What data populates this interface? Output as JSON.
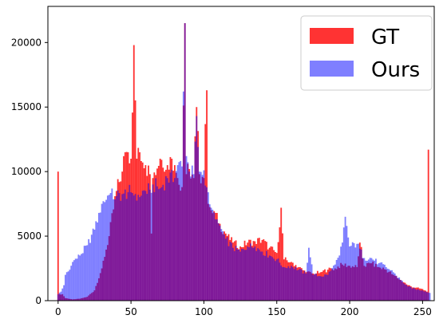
{
  "chart_data": {
    "type": "bar",
    "title": "",
    "xlabel": "",
    "ylabel": "",
    "xlim": [
      -7,
      258
    ],
    "ylim": [
      0,
      22800
    ],
    "x_ticks": [
      0,
      50,
      100,
      150,
      200,
      250
    ],
    "y_ticks": [
      0,
      5000,
      10000,
      15000,
      20000
    ],
    "legend_position": "top-right",
    "grid": false,
    "bin_width": 1,
    "series": [
      {
        "name": "GT",
        "color": "#ff0000",
        "opacity": 0.8,
        "control_points": [
          [
            0,
            10000
          ],
          [
            1,
            500
          ],
          [
            3,
            500
          ],
          [
            5,
            200
          ],
          [
            10,
            100
          ],
          [
            15,
            150
          ],
          [
            20,
            300
          ],
          [
            25,
            800
          ],
          [
            30,
            2500
          ],
          [
            35,
            5000
          ],
          [
            40,
            8500
          ],
          [
            44,
            10000
          ],
          [
            46,
            11500
          ],
          [
            48,
            11500
          ],
          [
            50,
            11000
          ],
          [
            52,
            19800
          ],
          [
            54,
            11000
          ],
          [
            56,
            11500
          ],
          [
            60,
            10500
          ],
          [
            63,
            9800
          ],
          [
            64,
            5200
          ],
          [
            65,
            9500
          ],
          [
            70,
            11000
          ],
          [
            75,
            10500
          ],
          [
            78,
            11000
          ],
          [
            80,
            10500
          ],
          [
            82,
            9500
          ],
          [
            85,
            8800
          ],
          [
            87,
            21500
          ],
          [
            88,
            9800
          ],
          [
            90,
            10200
          ],
          [
            93,
            9500
          ],
          [
            95,
            15000
          ],
          [
            97,
            9800
          ],
          [
            100,
            9500
          ],
          [
            102,
            16300
          ],
          [
            103,
            7500
          ],
          [
            105,
            7000
          ],
          [
            108,
            6800
          ],
          [
            110,
            6000
          ],
          [
            115,
            5200
          ],
          [
            118,
            4700
          ],
          [
            120,
            4500
          ],
          [
            125,
            4200
          ],
          [
            130,
            4500
          ],
          [
            135,
            4600
          ],
          [
            140,
            4700
          ],
          [
            145,
            4100
          ],
          [
            150,
            3700
          ],
          [
            153,
            7200
          ],
          [
            155,
            3200
          ],
          [
            160,
            3000
          ],
          [
            165,
            2600
          ],
          [
            170,
            2200
          ],
          [
            175,
            2100
          ],
          [
            180,
            2200
          ],
          [
            185,
            2400
          ],
          [
            190,
            2500
          ],
          [
            195,
            2800
          ],
          [
            200,
            2700
          ],
          [
            205,
            2600
          ],
          [
            207,
            4500
          ],
          [
            210,
            2700
          ],
          [
            215,
            2900
          ],
          [
            220,
            2600
          ],
          [
            225,
            2400
          ],
          [
            230,
            2000
          ],
          [
            235,
            1600
          ],
          [
            240,
            1200
          ],
          [
            245,
            1000
          ],
          [
            250,
            900
          ],
          [
            253,
            700
          ],
          [
            254,
            11700
          ]
        ]
      },
      {
        "name": "Ours",
        "color": "#0000ff",
        "opacity": 0.5,
        "control_points": [
          [
            0,
            500
          ],
          [
            2,
            700
          ],
          [
            4,
            1200
          ],
          [
            5,
            2000
          ],
          [
            8,
            2400
          ],
          [
            10,
            3000
          ],
          [
            15,
            3500
          ],
          [
            20,
            4300
          ],
          [
            25,
            5500
          ],
          [
            28,
            6800
          ],
          [
            30,
            7500
          ],
          [
            35,
            8200
          ],
          [
            40,
            8100
          ],
          [
            45,
            8300
          ],
          [
            48,
            8400
          ],
          [
            50,
            8400
          ],
          [
            55,
            8200
          ],
          [
            60,
            8500
          ],
          [
            63,
            8600
          ],
          [
            65,
            9000
          ],
          [
            70,
            8700
          ],
          [
            75,
            9500
          ],
          [
            80,
            9500
          ],
          [
            82,
            10500
          ],
          [
            85,
            10400
          ],
          [
            87,
            21500
          ],
          [
            88,
            11200
          ],
          [
            90,
            10000
          ],
          [
            93,
            9800
          ],
          [
            95,
            14300
          ],
          [
            97,
            10000
          ],
          [
            100,
            10100
          ],
          [
            103,
            8400
          ],
          [
            105,
            7200
          ],
          [
            108,
            6300
          ],
          [
            110,
            6000
          ],
          [
            115,
            4800
          ],
          [
            120,
            4100
          ],
          [
            125,
            3800
          ],
          [
            130,
            4200
          ],
          [
            135,
            4200
          ],
          [
            140,
            3800
          ],
          [
            145,
            3500
          ],
          [
            150,
            3200
          ],
          [
            155,
            2600
          ],
          [
            160,
            2700
          ],
          [
            165,
            2400
          ],
          [
            170,
            2100
          ],
          [
            172,
            4100
          ],
          [
            175,
            2000
          ],
          [
            180,
            1900
          ],
          [
            185,
            2000
          ],
          [
            190,
            2800
          ],
          [
            193,
            3500
          ],
          [
            195,
            4500
          ],
          [
            197,
            6500
          ],
          [
            200,
            4200
          ],
          [
            205,
            4400
          ],
          [
            210,
            3300
          ],
          [
            215,
            3300
          ],
          [
            220,
            2900
          ],
          [
            225,
            2600
          ],
          [
            230,
            2200
          ],
          [
            235,
            1600
          ],
          [
            240,
            1100
          ],
          [
            245,
            900
          ],
          [
            250,
            800
          ],
          [
            255,
            600
          ]
        ]
      }
    ]
  }
}
